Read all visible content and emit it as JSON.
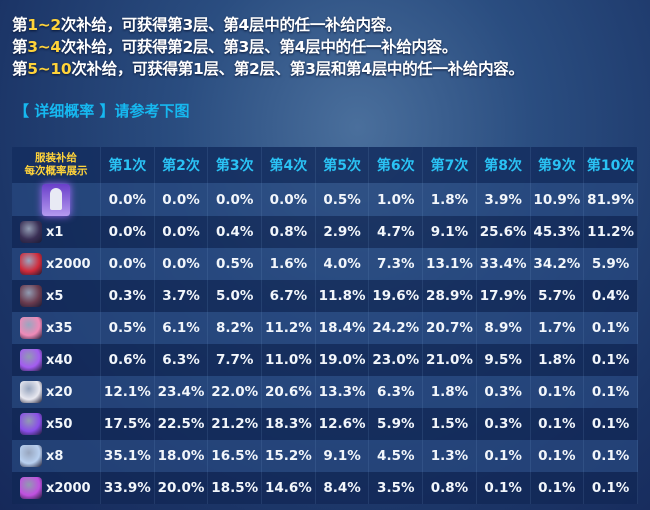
{
  "intro": [
    {
      "pre": "第",
      "hl": "1~2",
      "post": "次补给，可获得第3层、第4层中的任一补给内容。"
    },
    {
      "pre": "第",
      "hl": "3~4",
      "post": "次补给，可获得第2层、第3层、第4层中的任一补给内容。"
    },
    {
      "pre": "第",
      "hl": "5~10",
      "post": "次补给，可获得第1层、第2层、第3层和第4层中的任一补给内容。"
    }
  ],
  "subtitle": "【 详细概率 】请参考下图",
  "table": {
    "corner_line1": "服装补给",
    "corner_line2": "每次概率展示",
    "headers": [
      "第1次",
      "第2次",
      "第3次",
      "第4次",
      "第5次",
      "第6次",
      "第7次",
      "第8次",
      "第9次",
      "第10次"
    ],
    "rows": [
      {
        "icon": "outfit-icon",
        "qty": "",
        "color": "#8b5ce0",
        "values": [
          "0.0%",
          "0.0%",
          "0.0%",
          "0.0%",
          "0.5%",
          "1.0%",
          "1.8%",
          "3.9%",
          "10.9%",
          "81.9%"
        ]
      },
      {
        "icon": "chest-icon",
        "qty": "x1",
        "color": "#3a2f55",
        "values": [
          "0.0%",
          "0.0%",
          "0.4%",
          "0.8%",
          "2.9%",
          "4.7%",
          "9.1%",
          "25.6%",
          "45.3%",
          "11.2%"
        ]
      },
      {
        "icon": "red-pouch-icon",
        "qty": "x2000",
        "color": "#d02a3a",
        "values": [
          "0.0%",
          "0.0%",
          "0.5%",
          "1.6%",
          "4.0%",
          "7.3%",
          "13.1%",
          "33.4%",
          "34.2%",
          "5.9%"
        ]
      },
      {
        "icon": "dark-box-icon",
        "qty": "x5",
        "color": "#6a3b4e",
        "values": [
          "0.3%",
          "3.7%",
          "5.0%",
          "6.7%",
          "11.8%",
          "19.6%",
          "28.9%",
          "17.9%",
          "5.7%",
          "0.4%"
        ]
      },
      {
        "icon": "pink-ticket-icon",
        "qty": "x35",
        "color": "#f08ab8",
        "values": [
          "0.5%",
          "6.1%",
          "8.2%",
          "11.2%",
          "18.4%",
          "24.2%",
          "20.7%",
          "8.9%",
          "1.7%",
          "0.1%"
        ]
      },
      {
        "icon": "purple-crystal-icon",
        "qty": "x40",
        "color": "#a35cf0",
        "values": [
          "0.6%",
          "6.3%",
          "7.7%",
          "11.0%",
          "19.0%",
          "23.0%",
          "21.0%",
          "9.5%",
          "1.8%",
          "0.1%"
        ]
      },
      {
        "icon": "gift-box-icon",
        "qty": "x20",
        "color": "#e8e8f0",
        "values": [
          "12.1%",
          "23.4%",
          "22.0%",
          "20.6%",
          "13.3%",
          "6.3%",
          "1.8%",
          "0.3%",
          "0.1%",
          "0.1%"
        ]
      },
      {
        "icon": "violet-crystal-icon",
        "qty": "x50",
        "color": "#8a4ee8",
        "values": [
          "17.5%",
          "22.5%",
          "21.2%",
          "18.3%",
          "12.6%",
          "5.9%",
          "1.5%",
          "0.3%",
          "0.1%",
          "0.1%"
        ]
      },
      {
        "icon": "bottle-icon",
        "qty": "x8",
        "color": "#b8d0f0",
        "values": [
          "35.1%",
          "18.0%",
          "16.5%",
          "15.2%",
          "9.1%",
          "4.5%",
          "1.3%",
          "0.1%",
          "0.1%",
          "0.1%"
        ]
      },
      {
        "icon": "gem-icon",
        "qty": "x2000",
        "color": "#c050e0",
        "values": [
          "33.9%",
          "20.0%",
          "18.5%",
          "14.6%",
          "8.4%",
          "3.5%",
          "0.8%",
          "0.1%",
          "0.1%",
          "0.1%"
        ]
      }
    ]
  }
}
